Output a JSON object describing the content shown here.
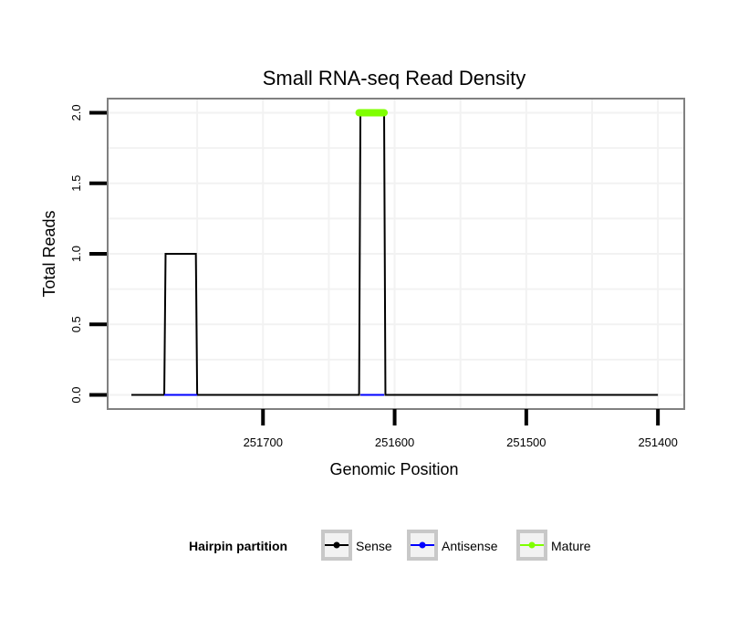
{
  "chart_data": {
    "type": "line",
    "title": "Small RNA-seq Read Density",
    "xlabel": "Genomic Position",
    "ylabel": "Total Reads",
    "x_reversed": true,
    "xlim": [
      251818,
      251380
    ],
    "ylim": [
      -0.1,
      2.1
    ],
    "x_ticks": [
      251700,
      251600,
      251500,
      251400
    ],
    "x_tick_labels": [
      "251700",
      "251600",
      "251500",
      "251400"
    ],
    "y_ticks": [
      0,
      0.5,
      1,
      1.5,
      2
    ],
    "y_tick_labels": [
      "0.0",
      "0.5",
      "1.0",
      "1.5",
      "2.0"
    ],
    "grid": true,
    "legend": {
      "title": "Hairpin partition",
      "position": "bottom"
    },
    "series": [
      {
        "name": "Sense",
        "color": "#000000",
        "x": [
          251800,
          251775,
          251774,
          251751,
          251750,
          251627,
          251626,
          251608,
          251607,
          251400
        ],
        "y": [
          0,
          0,
          1,
          1,
          0,
          0,
          2,
          2,
          0,
          0
        ]
      },
      {
        "name": "Antisense",
        "color": "#0000ff",
        "x": [
          251775,
          251750
        ],
        "y": [
          0,
          0
        ]
      },
      {
        "name": "Antisense",
        "color": "#0000ff",
        "x": [
          251626,
          251608
        ],
        "y": [
          0,
          0
        ]
      },
      {
        "name": "Mature",
        "color": "#7fff00",
        "x": [
          251627,
          251608
        ],
        "y": [
          2,
          2
        ]
      }
    ]
  }
}
